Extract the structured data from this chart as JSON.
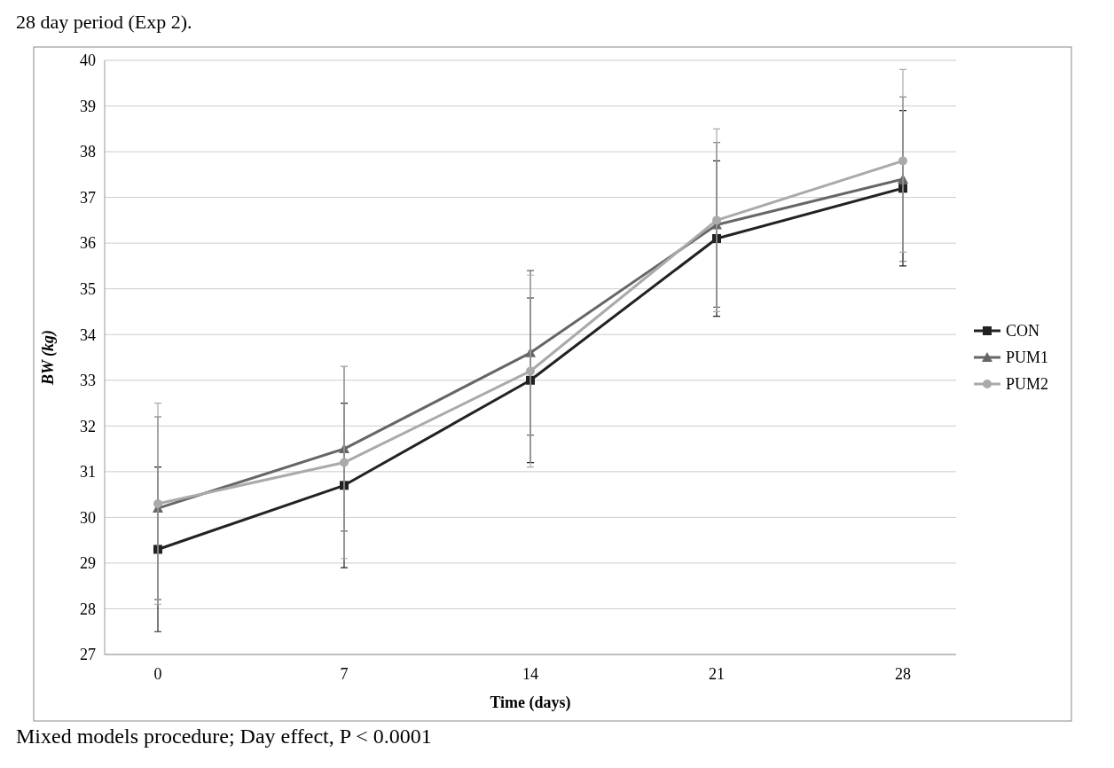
{
  "chart_data": {
    "type": "line",
    "xlabel": "Time (days)",
    "ylabel": "BW (kg)",
    "categories": [
      "0",
      "7",
      "14",
      "21",
      "28"
    ],
    "ylim": [
      27,
      40
    ],
    "yticks": [
      27,
      28,
      29,
      30,
      31,
      32,
      33,
      34,
      35,
      36,
      37,
      38,
      39,
      40
    ],
    "grid": "y",
    "legend": "right",
    "series": [
      {
        "name": "CON",
        "color": "#222222",
        "marker": "square",
        "values": [
          29.3,
          30.7,
          33.0,
          36.1,
          37.2
        ],
        "errors": [
          1.8,
          1.8,
          1.8,
          1.7,
          1.7
        ]
      },
      {
        "name": "PUM1",
        "color": "#666666",
        "marker": "triangle",
        "values": [
          30.2,
          31.5,
          33.6,
          36.4,
          37.4
        ],
        "errors": [
          2.0,
          1.8,
          1.8,
          1.8,
          1.8
        ]
      },
      {
        "name": "PUM2",
        "color": "#aaaaaa",
        "marker": "circle",
        "values": [
          30.3,
          31.2,
          33.2,
          36.5,
          37.8
        ],
        "errors": [
          2.2,
          2.1,
          2.1,
          2.0,
          2.0
        ]
      }
    ],
    "annotations": [
      "28 day period (Exp 2).",
      "Mixed models procedure; Day effect, P < 0.0001"
    ]
  }
}
